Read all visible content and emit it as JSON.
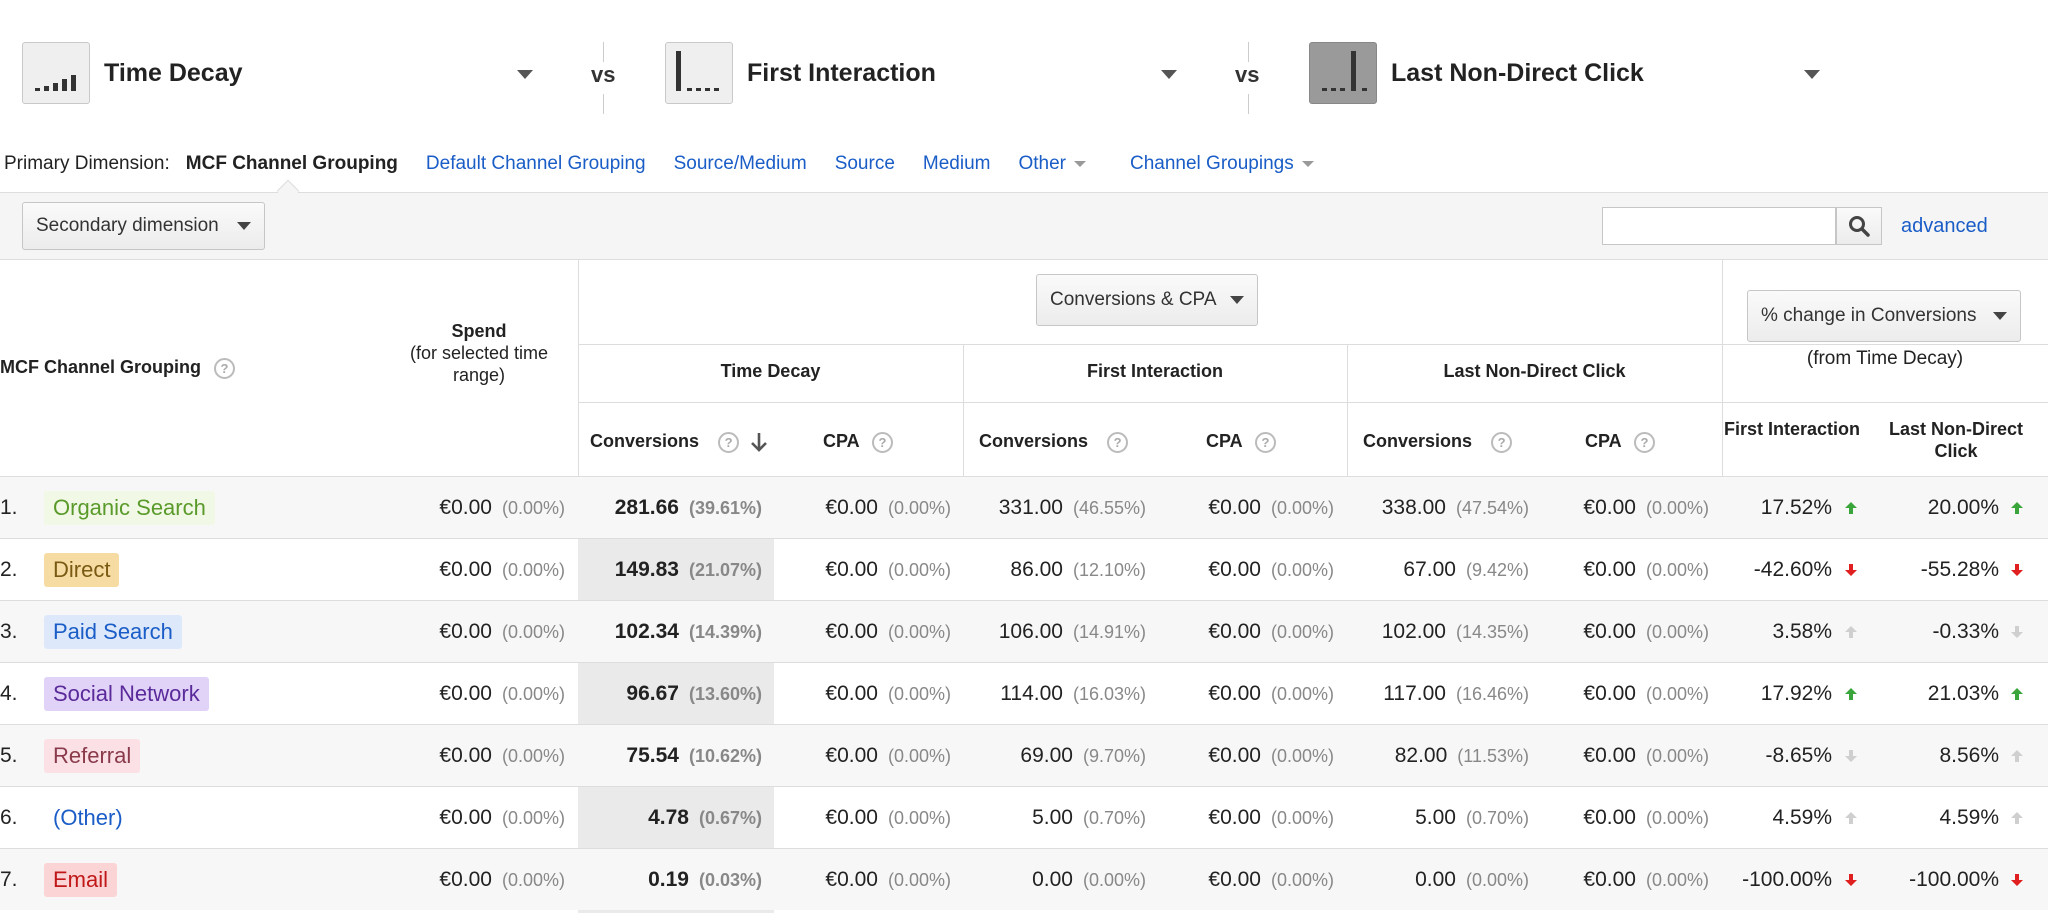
{
  "models": [
    {
      "name": "Time Decay"
    },
    {
      "name": "First Interaction"
    },
    {
      "name": "Last Non-Direct Click"
    }
  ],
  "vs_label": "vs",
  "primary_dimension": {
    "label": "Primary Dimension:",
    "active": "MCF Channel Grouping",
    "links": [
      "Default Channel Grouping",
      "Source/Medium",
      "Source",
      "Medium"
    ],
    "other": "Other",
    "channel_groupings": "Channel Groupings"
  },
  "toolbar": {
    "secondary_dimension": "Secondary dimension",
    "search_value": "",
    "advanced": "advanced"
  },
  "table": {
    "metric_selector": "Conversions & CPA",
    "change_selector": "% change in Conversions",
    "change_sub": "(from Time Decay)",
    "dimension_header": "MCF Channel Grouping",
    "spend_header": "Spend",
    "spend_sub": "(for selected time range)",
    "group_headers": [
      "Time Decay",
      "First Interaction",
      "Last Non-Direct Click"
    ],
    "conversions_header": "Conversions",
    "cpa_header": "CPA",
    "change_headers": [
      "First Interaction",
      "Last Non-Direct Click"
    ],
    "help_glyph": "?",
    "rows": [
      {
        "idx": "1.",
        "channel": "Organic Search",
        "chip_bg": "#f1f8e6",
        "chip_fg": "#5a9a2a",
        "spend": "€0.00",
        "spend_pct": "(0.00%)",
        "td_conv": "281.66",
        "td_conv_pct": "(39.61%)",
        "td_cpa": "€0.00",
        "td_cpa_pct": "(0.00%)",
        "fi_conv": "331.00",
        "fi_conv_pct": "(46.55%)",
        "fi_cpa": "€0.00",
        "fi_cpa_pct": "(0.00%)",
        "ld_conv": "338.00",
        "ld_conv_pct": "(47.54%)",
        "ld_cpa": "€0.00",
        "ld_cpa_pct": "(0.00%)",
        "chg_fi": "17.52%",
        "chg_fi_dir": "up",
        "chg_ld": "20.00%",
        "chg_ld_dir": "up"
      },
      {
        "idx": "2.",
        "channel": "Direct",
        "chip_bg": "#f6dca3",
        "chip_fg": "#7a5a12",
        "spend": "€0.00",
        "spend_pct": "(0.00%)",
        "td_conv": "149.83",
        "td_conv_pct": "(21.07%)",
        "td_cpa": "€0.00",
        "td_cpa_pct": "(0.00%)",
        "fi_conv": "86.00",
        "fi_conv_pct": "(12.10%)",
        "fi_cpa": "€0.00",
        "fi_cpa_pct": "(0.00%)",
        "ld_conv": "67.00",
        "ld_conv_pct": "(9.42%)",
        "ld_cpa": "€0.00",
        "ld_cpa_pct": "(0.00%)",
        "chg_fi": "-42.60%",
        "chg_fi_dir": "down",
        "chg_ld": "-55.28%",
        "chg_ld_dir": "down"
      },
      {
        "idx": "3.",
        "channel": "Paid Search",
        "chip_bg": "#dde9fb",
        "chip_fg": "#1a5dc7",
        "spend": "€0.00",
        "spend_pct": "(0.00%)",
        "td_conv": "102.34",
        "td_conv_pct": "(14.39%)",
        "td_cpa": "€0.00",
        "td_cpa_pct": "(0.00%)",
        "fi_conv": "106.00",
        "fi_conv_pct": "(14.91%)",
        "fi_cpa": "€0.00",
        "fi_cpa_pct": "(0.00%)",
        "ld_conv": "102.00",
        "ld_conv_pct": "(14.35%)",
        "ld_cpa": "€0.00",
        "ld_cpa_pct": "(0.00%)",
        "chg_fi": "3.58%",
        "chg_fi_dir": "up-faint",
        "chg_ld": "-0.33%",
        "chg_ld_dir": "down-faint"
      },
      {
        "idx": "4.",
        "channel": "Social Network",
        "chip_bg": "#e1d2f7",
        "chip_fg": "#5a2a9a",
        "spend": "€0.00",
        "spend_pct": "(0.00%)",
        "td_conv": "96.67",
        "td_conv_pct": "(13.60%)",
        "td_cpa": "€0.00",
        "td_cpa_pct": "(0.00%)",
        "fi_conv": "114.00",
        "fi_conv_pct": "(16.03%)",
        "fi_cpa": "€0.00",
        "fi_cpa_pct": "(0.00%)",
        "ld_conv": "117.00",
        "ld_conv_pct": "(16.46%)",
        "ld_cpa": "€0.00",
        "ld_cpa_pct": "(0.00%)",
        "chg_fi": "17.92%",
        "chg_fi_dir": "up",
        "chg_ld": "21.03%",
        "chg_ld_dir": "up"
      },
      {
        "idx": "5.",
        "channel": "Referral",
        "chip_bg": "#fbe1e6",
        "chip_fg": "#8a3a4a",
        "spend": "€0.00",
        "spend_pct": "(0.00%)",
        "td_conv": "75.54",
        "td_conv_pct": "(10.62%)",
        "td_cpa": "€0.00",
        "td_cpa_pct": "(0.00%)",
        "fi_conv": "69.00",
        "fi_conv_pct": "(9.70%)",
        "fi_cpa": "€0.00",
        "fi_cpa_pct": "(0.00%)",
        "ld_conv": "82.00",
        "ld_conv_pct": "(11.53%)",
        "ld_cpa": "€0.00",
        "ld_cpa_pct": "(0.00%)",
        "chg_fi": "-8.65%",
        "chg_fi_dir": "down-faint",
        "chg_ld": "8.56%",
        "chg_ld_dir": "up-faint"
      },
      {
        "idx": "6.",
        "channel": "(Other)",
        "chip_bg": "transparent",
        "chip_fg": "#1a5dc7",
        "spend": "€0.00",
        "spend_pct": "(0.00%)",
        "td_conv": "4.78",
        "td_conv_pct": "(0.67%)",
        "td_cpa": "€0.00",
        "td_cpa_pct": "(0.00%)",
        "fi_conv": "5.00",
        "fi_conv_pct": "(0.70%)",
        "fi_cpa": "€0.00",
        "fi_cpa_pct": "(0.00%)",
        "ld_conv": "5.00",
        "ld_conv_pct": "(0.70%)",
        "ld_cpa": "€0.00",
        "ld_cpa_pct": "(0.00%)",
        "chg_fi": "4.59%",
        "chg_fi_dir": "up-faint",
        "chg_ld": "4.59%",
        "chg_ld_dir": "up-faint"
      },
      {
        "idx": "7.",
        "channel": "Email",
        "chip_bg": "#fbd5d5",
        "chip_fg": "#c01818",
        "spend": "€0.00",
        "spend_pct": "(0.00%)",
        "td_conv": "0.19",
        "td_conv_pct": "(0.03%)",
        "td_cpa": "€0.00",
        "td_cpa_pct": "(0.00%)",
        "fi_conv": "0.00",
        "fi_conv_pct": "(0.00%)",
        "fi_cpa": "€0.00",
        "fi_cpa_pct": "(0.00%)",
        "ld_conv": "0.00",
        "ld_conv_pct": "(0.00%)",
        "ld_cpa": "€0.00",
        "ld_cpa_pct": "(0.00%)",
        "chg_fi": "-100.00%",
        "chg_fi_dir": "down",
        "chg_ld": "-100.00%",
        "chg_ld_dir": "down"
      }
    ]
  },
  "colors": {
    "up": "#3aa53a",
    "down": "#e02020",
    "faint": "#cfcfcf",
    "link": "#1a5dc7"
  }
}
